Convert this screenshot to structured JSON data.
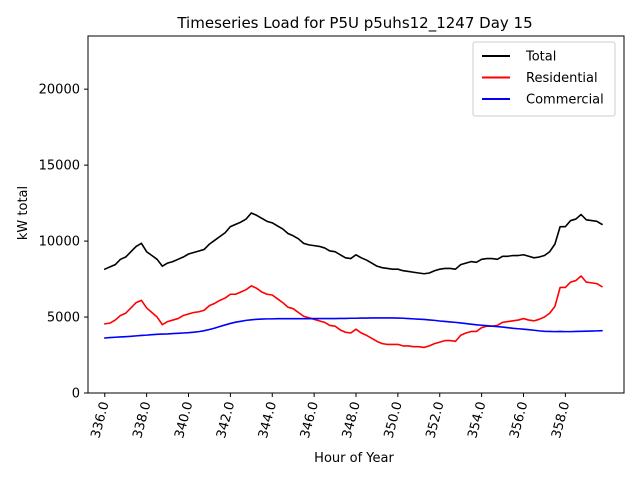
{
  "chart_data": {
    "type": "line",
    "title": "Timeseries Load for P5U p5uhs12_1247  Day 15",
    "xlabel": "Hour of Year",
    "ylabel": "kW total",
    "xlim": [
      335.2,
      360.8
    ],
    "ylim": [
      0,
      23500
    ],
    "xticks": [
      336,
      338,
      340,
      342,
      344,
      346,
      348,
      350,
      352,
      354,
      356,
      358
    ],
    "xtick_labels": [
      "336.0",
      "338.0",
      "340.0",
      "342.0",
      "344.0",
      "346.0",
      "348.0",
      "350.0",
      "352.0",
      "354.0",
      "356.0",
      "358.0"
    ],
    "yticks": [
      0,
      5000,
      10000,
      15000,
      20000
    ],
    "ytick_labels": [
      "0",
      "5000",
      "10000",
      "15000",
      "20000"
    ],
    "legend_position": "top-right",
    "x": [
      336.0,
      336.25,
      336.5,
      336.75,
      337.0,
      337.25,
      337.5,
      337.75,
      338.0,
      338.25,
      338.5,
      338.75,
      339.0,
      339.25,
      339.5,
      339.75,
      340.0,
      340.25,
      340.5,
      340.75,
      341.0,
      341.25,
      341.5,
      341.75,
      342.0,
      342.25,
      342.5,
      342.75,
      343.0,
      343.25,
      343.5,
      343.75,
      344.0,
      344.25,
      344.5,
      344.75,
      345.0,
      345.25,
      345.5,
      345.75,
      346.0,
      346.25,
      346.5,
      346.75,
      347.0,
      347.25,
      347.5,
      347.75,
      348.0,
      348.25,
      348.5,
      348.75,
      349.0,
      349.25,
      349.5,
      349.75,
      350.0,
      350.25,
      350.5,
      350.75,
      351.0,
      351.25,
      351.5,
      351.75,
      352.0,
      352.25,
      352.5,
      352.75,
      353.0,
      353.25,
      353.5,
      353.75,
      354.0,
      354.25,
      354.5,
      354.75,
      355.0,
      355.25,
      355.5,
      355.75,
      356.0,
      356.25,
      356.5,
      356.75,
      357.0,
      357.25,
      357.5,
      357.75,
      358.0,
      358.25,
      358.5,
      358.75,
      359.0,
      359.25,
      359.5,
      359.75
    ],
    "series": [
      {
        "name": "Total",
        "color": "#000000",
        "values": [
          8150,
          8300,
          8450,
          8800,
          8950,
          9300,
          9650,
          9850,
          9300,
          9050,
          8800,
          8350,
          8550,
          8650,
          8800,
          8950,
          9150,
          9250,
          9350,
          9450,
          9800,
          10050,
          10300,
          10550,
          10950,
          11100,
          11250,
          11450,
          11850,
          11700,
          11500,
          11300,
          11200,
          11000,
          10800,
          10500,
          10350,
          10150,
          9850,
          9750,
          9700,
          9650,
          9550,
          9350,
          9300,
          9100,
          8900,
          8850,
          9100,
          8900,
          8750,
          8550,
          8350,
          8250,
          8200,
          8150,
          8150,
          8050,
          8000,
          7950,
          7900,
          7850,
          7900,
          8050,
          8150,
          8200,
          8200,
          8150,
          8450,
          8550,
          8650,
          8600,
          8800,
          8850,
          8850,
          8800,
          9000,
          9000,
          9050,
          9050,
          9100,
          9000,
          8900,
          8950,
          9050,
          9300,
          9800,
          10950,
          10950,
          11350,
          11450,
          11750,
          11400,
          11350,
          11300,
          11100
        ]
      },
      {
        "name": "Residential",
        "color": "#ff0000",
        "values": [
          4550,
          4600,
          4800,
          5100,
          5250,
          5600,
          5950,
          6100,
          5600,
          5300,
          5000,
          4500,
          4700,
          4800,
          4900,
          5100,
          5200,
          5300,
          5350,
          5450,
          5750,
          5900,
          6100,
          6250,
          6500,
          6500,
          6650,
          6800,
          7050,
          6900,
          6650,
          6500,
          6450,
          6200,
          5950,
          5650,
          5550,
          5300,
          5050,
          4950,
          4850,
          4750,
          4650,
          4450,
          4400,
          4150,
          4000,
          3950,
          4200,
          3950,
          3800,
          3600,
          3400,
          3250,
          3200,
          3200,
          3200,
          3100,
          3100,
          3050,
          3050,
          3000,
          3100,
          3250,
          3350,
          3450,
          3450,
          3400,
          3800,
          3950,
          4050,
          4050,
          4300,
          4400,
          4400,
          4450,
          4650,
          4700,
          4750,
          4800,
          4900,
          4800,
          4750,
          4850,
          5000,
          5250,
          5700,
          6950,
          6950,
          7300,
          7400,
          7700,
          7300,
          7250,
          7200,
          7000
        ]
      },
      {
        "name": "Commercial",
        "color": "#0000ff",
        "values": [
          3620,
          3650,
          3670,
          3690,
          3710,
          3730,
          3760,
          3790,
          3810,
          3840,
          3860,
          3880,
          3890,
          3910,
          3930,
          3950,
          3970,
          4000,
          4040,
          4100,
          4180,
          4270,
          4380,
          4480,
          4580,
          4660,
          4720,
          4780,
          4820,
          4850,
          4870,
          4880,
          4880,
          4890,
          4890,
          4890,
          4890,
          4890,
          4890,
          4890,
          4900,
          4900,
          4900,
          4900,
          4900,
          4910,
          4910,
          4920,
          4920,
          4930,
          4930,
          4940,
          4940,
          4940,
          4940,
          4940,
          4930,
          4920,
          4900,
          4880,
          4860,
          4840,
          4810,
          4780,
          4740,
          4710,
          4680,
          4650,
          4610,
          4570,
          4530,
          4490,
          4460,
          4430,
          4400,
          4370,
          4340,
          4300,
          4260,
          4230,
          4200,
          4170,
          4130,
          4090,
          4060,
          4050,
          4040,
          4050,
          4040,
          4040,
          4050,
          4060,
          4070,
          4080,
          4090,
          4100
        ]
      }
    ]
  }
}
